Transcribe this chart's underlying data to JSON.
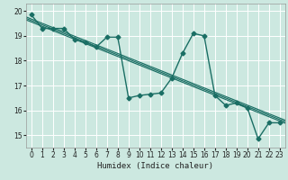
{
  "xlabel": "Humidex (Indice chaleur)",
  "bg_color": "#cce8e0",
  "grid_color": "#ffffff",
  "line_color": "#1a6e64",
  "xlim": [
    -0.5,
    23.5
  ],
  "ylim": [
    14.5,
    20.3
  ],
  "yticks": [
    15,
    16,
    17,
    18,
    19,
    20
  ],
  "xticks": [
    0,
    1,
    2,
    3,
    4,
    5,
    6,
    7,
    8,
    9,
    10,
    11,
    12,
    13,
    14,
    15,
    16,
    17,
    18,
    19,
    20,
    21,
    22,
    23
  ],
  "series1_x": [
    0,
    1,
    2,
    3,
    4,
    5,
    6,
    7,
    8,
    9,
    10,
    11,
    12,
    13,
    14,
    15,
    16,
    17,
    18,
    19,
    20,
    21,
    22,
    23
  ],
  "series1_y": [
    19.85,
    19.3,
    19.3,
    19.3,
    18.85,
    18.75,
    18.55,
    18.95,
    18.95,
    16.5,
    16.6,
    16.65,
    16.7,
    17.3,
    18.3,
    19.1,
    19.0,
    16.6,
    16.2,
    16.3,
    16.1,
    14.85,
    15.5,
    15.5
  ],
  "trend_offsets": [
    -0.06,
    0.0,
    0.06
  ],
  "marker_size": 2.5,
  "line_width": 1.0,
  "tick_fontsize": 5.5,
  "xlabel_fontsize": 6.5
}
